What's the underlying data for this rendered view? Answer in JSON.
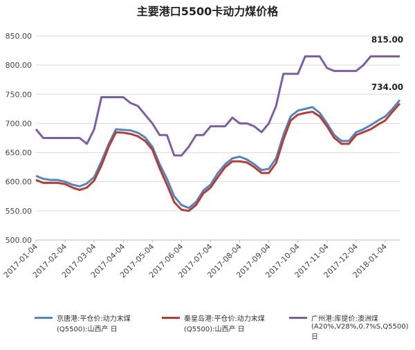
{
  "chart_data": {
    "type": "line",
    "title": "主要港口5500卡动力煤价格",
    "categories": [
      "2017-01-04",
      null,
      null,
      null,
      "2017-02-04",
      null,
      null,
      null,
      "2017-03-04",
      null,
      null,
      null,
      "2017-04-04",
      null,
      null,
      null,
      "2017-05-04",
      null,
      null,
      null,
      "2017-06-04",
      null,
      null,
      null,
      "2017-07-04",
      null,
      null,
      null,
      "2017-08-04",
      null,
      null,
      null,
      "2017-09-04",
      null,
      null,
      null,
      "2017-10-04",
      null,
      null,
      null,
      "2017-11-04",
      null,
      null,
      null,
      "2017-12-04",
      null,
      null,
      null,
      "2018-01-04",
      null,
      null
    ],
    "series": [
      {
        "name": "京唐港:平仓价:动力末煤(Q5500):山西产 日",
        "color": "#4a86c8",
        "values": [
          610,
          605,
          603,
          603,
          600,
          595,
          592,
          597,
          608,
          635,
          665,
          690,
          689,
          688,
          684,
          676,
          660,
          630,
          605,
          575,
          560,
          555,
          565,
          585,
          595,
          615,
          630,
          640,
          643,
          638,
          630,
          620,
          622,
          640,
          680,
          712,
          722,
          725,
          728,
          718,
          700,
          680,
          670,
          670,
          685,
          690,
          697,
          705,
          712,
          725,
          740
        ]
      },
      {
        "name": "秦皇岛港:平仓价:动力末煤(Q5500):山西产 日",
        "color": "#c0392b",
        "values": [
          603,
          598,
          598,
          598,
          596,
          590,
          586,
          590,
          602,
          628,
          660,
          685,
          684,
          682,
          678,
          670,
          655,
          623,
          595,
          565,
          552,
          550,
          560,
          580,
          590,
          608,
          625,
          635,
          635,
          633,
          625,
          615,
          615,
          632,
          672,
          705,
          715,
          718,
          720,
          712,
          695,
          675,
          665,
          665,
          680,
          685,
          690,
          698,
          705,
          720,
          734
        ],
        "value_labels": [
          null,
          null,
          null,
          null,
          null,
          null,
          null,
          null,
          null,
          null,
          null,
          null,
          null,
          null,
          null,
          null,
          null,
          null,
          null,
          null,
          null,
          null,
          null,
          null,
          null,
          null,
          null,
          null,
          null,
          null,
          null,
          null,
          null,
          null,
          null,
          null,
          null,
          null,
          null,
          null,
          null,
          null,
          null,
          null,
          null,
          null,
          null,
          null,
          null,
          null,
          "734.00"
        ]
      },
      {
        "name": "广州港:库提价:澳洲煤(A20%,V28%,0.7%S,Q5500) 日",
        "color": "#7b5ea7",
        "values": [
          690,
          675,
          675,
          675,
          675,
          675,
          675,
          665,
          690,
          745,
          745,
          745,
          745,
          735,
          730,
          715,
          700,
          680,
          680,
          645,
          645,
          660,
          680,
          680,
          695,
          695,
          695,
          710,
          700,
          700,
          695,
          685,
          700,
          730,
          785,
          785,
          785,
          815,
          815,
          815,
          795,
          790,
          790,
          790,
          790,
          800,
          815,
          815,
          815,
          815,
          815
        ],
        "value_labels": [
          null,
          null,
          null,
          null,
          null,
          null,
          null,
          null,
          null,
          null,
          null,
          null,
          null,
          null,
          null,
          null,
          null,
          null,
          null,
          null,
          null,
          null,
          null,
          null,
          null,
          null,
          null,
          null,
          null,
          null,
          null,
          null,
          null,
          null,
          null,
          null,
          null,
          null,
          null,
          null,
          null,
          null,
          null,
          null,
          null,
          null,
          null,
          null,
          null,
          null,
          "815.00"
        ]
      }
    ],
    "ylim": [
      500,
      850
    ],
    "yticks": [
      {
        "value": 500,
        "label": "500.00"
      },
      {
        "value": 550,
        "label": "550.00"
      },
      {
        "value": 600,
        "label": "600.00"
      },
      {
        "value": 650,
        "label": "650.00"
      },
      {
        "value": 700,
        "label": "700.00"
      },
      {
        "value": 750,
        "label": "750.00"
      },
      {
        "value": 800,
        "label": "800.00"
      },
      {
        "value": 850,
        "label": "850.00"
      }
    ],
    "grid": true
  }
}
